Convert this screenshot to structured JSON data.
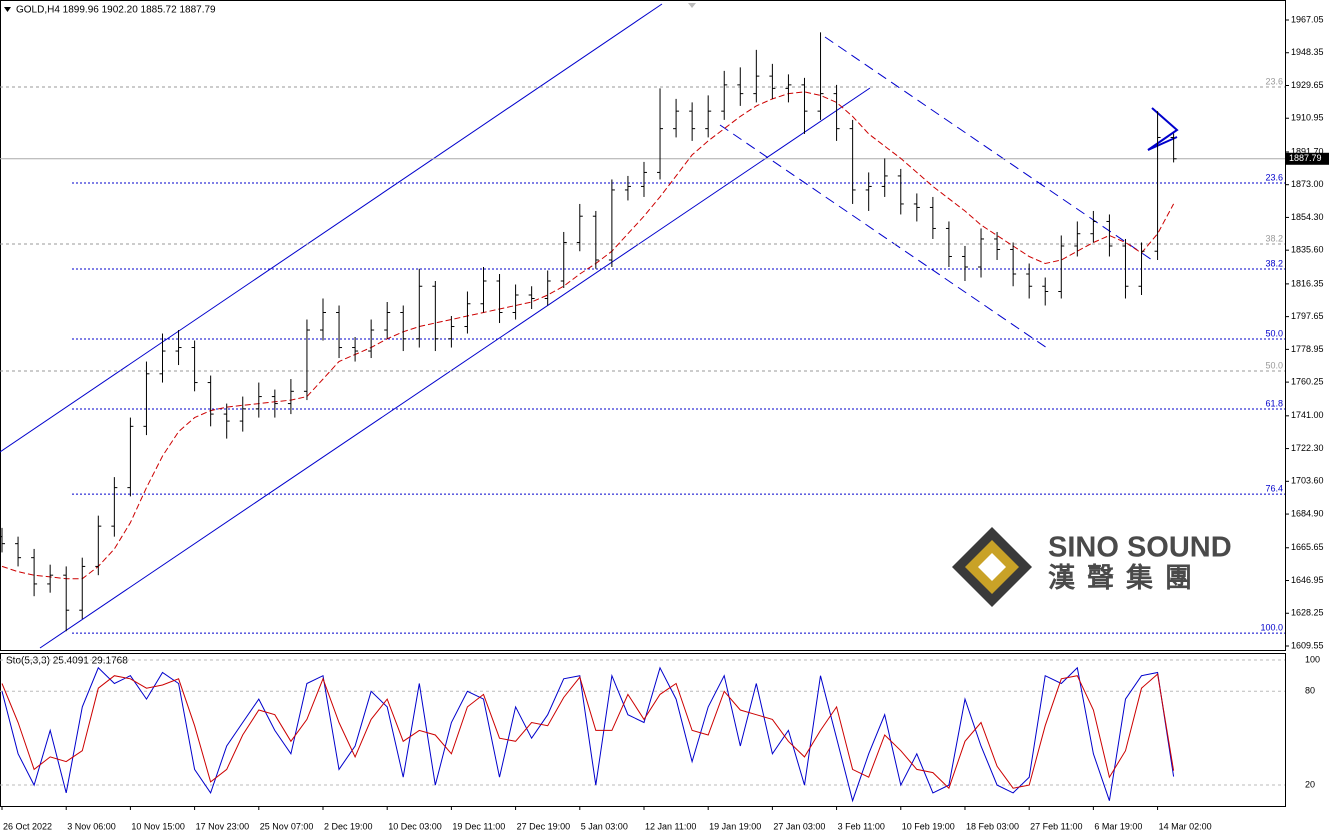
{
  "chart_data": {
    "type": "ohlc",
    "title": "GOLD,H4 1899.96 1902.20 1885.72 1887.79",
    "color": "#000000",
    "open": [
      1672,
      1668,
      1660,
      1645,
      1650,
      1630,
      1655,
      1678,
      1700,
      1735,
      1765,
      1778,
      1780,
      1760,
      1742,
      1738,
      1745,
      1752,
      1748,
      1755,
      1790,
      1800,
      1780,
      1778,
      1790,
      1800,
      1785,
      1815,
      1785,
      1792,
      1805,
      1818,
      1800,
      1810,
      1808,
      1818,
      1840,
      1855,
      1830,
      1870,
      1872,
      1880,
      1905,
      1915,
      1905,
      1915,
      1930,
      1925,
      1935,
      1928,
      1930,
      1915,
      1925,
      1905,
      1870,
      1872,
      1878,
      1862,
      1860,
      1848,
      1832,
      1826,
      1842,
      1836,
      1822,
      1815,
      1812,
      1838,
      1845,
      1852,
      1838,
      1815,
      1835,
      1899.96
    ],
    "high": [
      1677,
      1672,
      1665,
      1656,
      1655,
      1660,
      1684,
      1706,
      1740,
      1772,
      1788,
      1790,
      1784,
      1764,
      1748,
      1752,
      1760,
      1756,
      1762,
      1796,
      1808,
      1804,
      1786,
      1796,
      1806,
      1804,
      1825,
      1818,
      1798,
      1812,
      1826,
      1822,
      1816,
      1815,
      1824,
      1846,
      1862,
      1858,
      1876,
      1878,
      1886,
      1928,
      1922,
      1920,
      1924,
      1938,
      1940,
      1950,
      1942,
      1936,
      1934,
      1960,
      1930,
      1910,
      1880,
      1888,
      1882,
      1868,
      1866,
      1852,
      1838,
      1848,
      1846,
      1840,
      1828,
      1820,
      1844,
      1852,
      1858,
      1856,
      1842,
      1840,
      1915,
      1902.2
    ],
    "low": [
      1663,
      1655,
      1638,
      1640,
      1618,
      1625,
      1650,
      1672,
      1695,
      1730,
      1760,
      1770,
      1755,
      1735,
      1728,
      1732,
      1740,
      1740,
      1742,
      1750,
      1784,
      1774,
      1772,
      1774,
      1785,
      1778,
      1780,
      1778,
      1780,
      1788,
      1800,
      1794,
      1796,
      1802,
      1804,
      1814,
      1835,
      1825,
      1826,
      1864,
      1866,
      1876,
      1900,
      1898,
      1900,
      1910,
      1918,
      1920,
      1922,
      1920,
      1902,
      1910,
      1898,
      1862,
      1858,
      1866,
      1856,
      1852,
      1842,
      1826,
      1818,
      1820,
      1830,
      1815,
      1808,
      1804,
      1808,
      1832,
      1840,
      1832,
      1808,
      1810,
      1830,
      1885.72
    ],
    "close": [
      1668,
      1660,
      1645,
      1650,
      1630,
      1655,
      1678,
      1700,
      1735,
      1765,
      1778,
      1780,
      1760,
      1742,
      1738,
      1745,
      1752,
      1748,
      1755,
      1790,
      1800,
      1780,
      1778,
      1790,
      1800,
      1785,
      1815,
      1785,
      1792,
      1805,
      1818,
      1800,
      1810,
      1808,
      1818,
      1840,
      1855,
      1830,
      1870,
      1872,
      1880,
      1905,
      1915,
      1905,
      1915,
      1930,
      1925,
      1935,
      1928,
      1930,
      1915,
      1925,
      1905,
      1870,
      1872,
      1878,
      1862,
      1860,
      1848,
      1832,
      1826,
      1842,
      1836,
      1822,
      1815,
      1812,
      1838,
      1845,
      1852,
      1838,
      1815,
      1835,
      1899.96,
      1887.79
    ],
    "ma": {
      "color": "#cc0000",
      "values": [
        1655,
        1652,
        1650,
        1649,
        1648,
        1648,
        1655,
        1665,
        1680,
        1700,
        1718,
        1732,
        1740,
        1744,
        1746,
        1747,
        1748,
        1749,
        1750,
        1752,
        1762,
        1772,
        1776,
        1780,
        1785,
        1789,
        1792,
        1794,
        1796,
        1798,
        1800,
        1802,
        1804,
        1806,
        1810,
        1815,
        1822,
        1828,
        1835,
        1845,
        1855,
        1866,
        1878,
        1890,
        1898,
        1905,
        1912,
        1918,
        1922,
        1925,
        1926,
        1924,
        1920,
        1912,
        1902,
        1895,
        1888,
        1880,
        1872,
        1865,
        1858,
        1850,
        1844,
        1838,
        1832,
        1828,
        1830,
        1835,
        1840,
        1844,
        1840,
        1834,
        1845,
        1862
      ]
    },
    "xlim": [
      -0.125,
      79.94
    ],
    "xticks": [
      {
        "value": 0,
        "label": "26 Oct 2022"
      },
      {
        "value": 4,
        "label": "3 Nov 06:00"
      },
      {
        "value": 8,
        "label": "10 Nov 15:00"
      },
      {
        "value": 12,
        "label": "17 Nov 23:00"
      },
      {
        "value": 16,
        "label": "25 Nov 07:00"
      },
      {
        "value": 20,
        "label": "2 Dec 19:00"
      },
      {
        "value": 24,
        "label": "10 Dec 03:00"
      },
      {
        "value": 28,
        "label": "19 Dec 11:00"
      },
      {
        "value": 32,
        "label": "27 Dec 19:00"
      },
      {
        "value": 36,
        "label": "5 Jan 03:00"
      },
      {
        "value": 40,
        "label": "12 Jan 11:00"
      },
      {
        "value": 44,
        "label": "19 Jan 19:00"
      },
      {
        "value": 48,
        "label": "27 Jan 03:00"
      },
      {
        "value": 52,
        "label": "3 Feb 11:00"
      },
      {
        "value": 56,
        "label": "10 Feb 19:00"
      },
      {
        "value": 60,
        "label": "18 Feb 03:00"
      },
      {
        "value": 64,
        "label": "27 Feb 11:00"
      },
      {
        "value": 68,
        "label": "6 Mar 19:00"
      },
      {
        "value": 72,
        "label": "14 Mar 02:00"
      }
    ],
    "ylim": [
      1607.27,
      1978.47
    ],
    "yticks": [
      1967.05,
      1948.35,
      1929.65,
      1910.95,
      {
        "value": 1891.7,
        "label": "1891.70"
      },
      {
        "value": 1873,
        "label": "1873.00"
      },
      {
        "value": 1854.3,
        "label": "1854.30"
      },
      {
        "value": 1835.6,
        "label": "1835.60"
      },
      1816.35,
      1797.65,
      1778.95,
      1760.25,
      {
        "value": 1741,
        "label": "1741.00"
      },
      {
        "value": 1722.3,
        "label": "1722.30"
      },
      {
        "value": 1703.6,
        "label": "1703.60"
      },
      {
        "value": 1684.9,
        "label": "1684.90"
      },
      1665.65,
      1646.95,
      1628.25,
      1609.55
    ],
    "fib_levels": [
      {
        "color": "#0000cc",
        "levels": [
          {
            "value": 1873.96,
            "label": "23.6"
          },
          {
            "value": 1824.85,
            "label": "38.2"
          },
          {
            "value": 1784.87,
            "label": "50.0"
          },
          {
            "value": 1744.9,
            "label": "61.8"
          },
          {
            "value": 1696.3,
            "label": "76.4"
          },
          {
            "value": 1616.9,
            "label": "100.0"
          }
        ]
      },
      {
        "color": "#999999",
        "levels": [
          {
            "value": 1928.8,
            "label": "23.6"
          },
          {
            "value": 1839.1,
            "label": "38.2"
          },
          {
            "value": 1766.6,
            "label": "50.0"
          }
        ]
      }
    ],
    "indicator": {
      "type": "line",
      "title": "Sto(5,3,3) 25.4091 29.1768",
      "ylim": [
        6.6,
        104.5
      ],
      "yticks": [
        100,
        80,
        20
      ],
      "series": [
        {
          "color": "#0000cc",
          "values": [
            80,
            40,
            20,
            55,
            15,
            70,
            95,
            85,
            90,
            75,
            92,
            85,
            30,
            15,
            45,
            60,
            75,
            55,
            40,
            85,
            90,
            30,
            45,
            80,
            70,
            25,
            85,
            20,
            60,
            80,
            75,
            25,
            70,
            50,
            65,
            88,
            90,
            20,
            90,
            65,
            60,
            95,
            75,
            35,
            70,
            90,
            45,
            85,
            40,
            55,
            20,
            90,
            50,
            10,
            40,
            65,
            20,
            40,
            15,
            20,
            75,
            45,
            20,
            15,
            25,
            90,
            85,
            95,
            40,
            10,
            75,
            90,
            92,
            25.4091
          ]
        },
        {
          "color": "#cc0000",
          "values": [
            85,
            60,
            30,
            38,
            35,
            42,
            82,
            90,
            88,
            82,
            84,
            88,
            58,
            22,
            30,
            52,
            68,
            65,
            48,
            62,
            88,
            60,
            38,
            62,
            75,
            48,
            55,
            52,
            40,
            70,
            78,
            50,
            48,
            60,
            58,
            76,
            89,
            55,
            55,
            78,
            62,
            78,
            85,
            55,
            52,
            80,
            68,
            65,
            62,
            48,
            38,
            55,
            70,
            30,
            25,
            52,
            42,
            30,
            28,
            18,
            48,
            60,
            32,
            18,
            20,
            58,
            88,
            90,
            68,
            25,
            42,
            82,
            91,
            29.1768
          ]
        }
      ]
    }
  },
  "logo": {
    "name": "SINO SOUND",
    "subtitle": "漢聲集團"
  }
}
